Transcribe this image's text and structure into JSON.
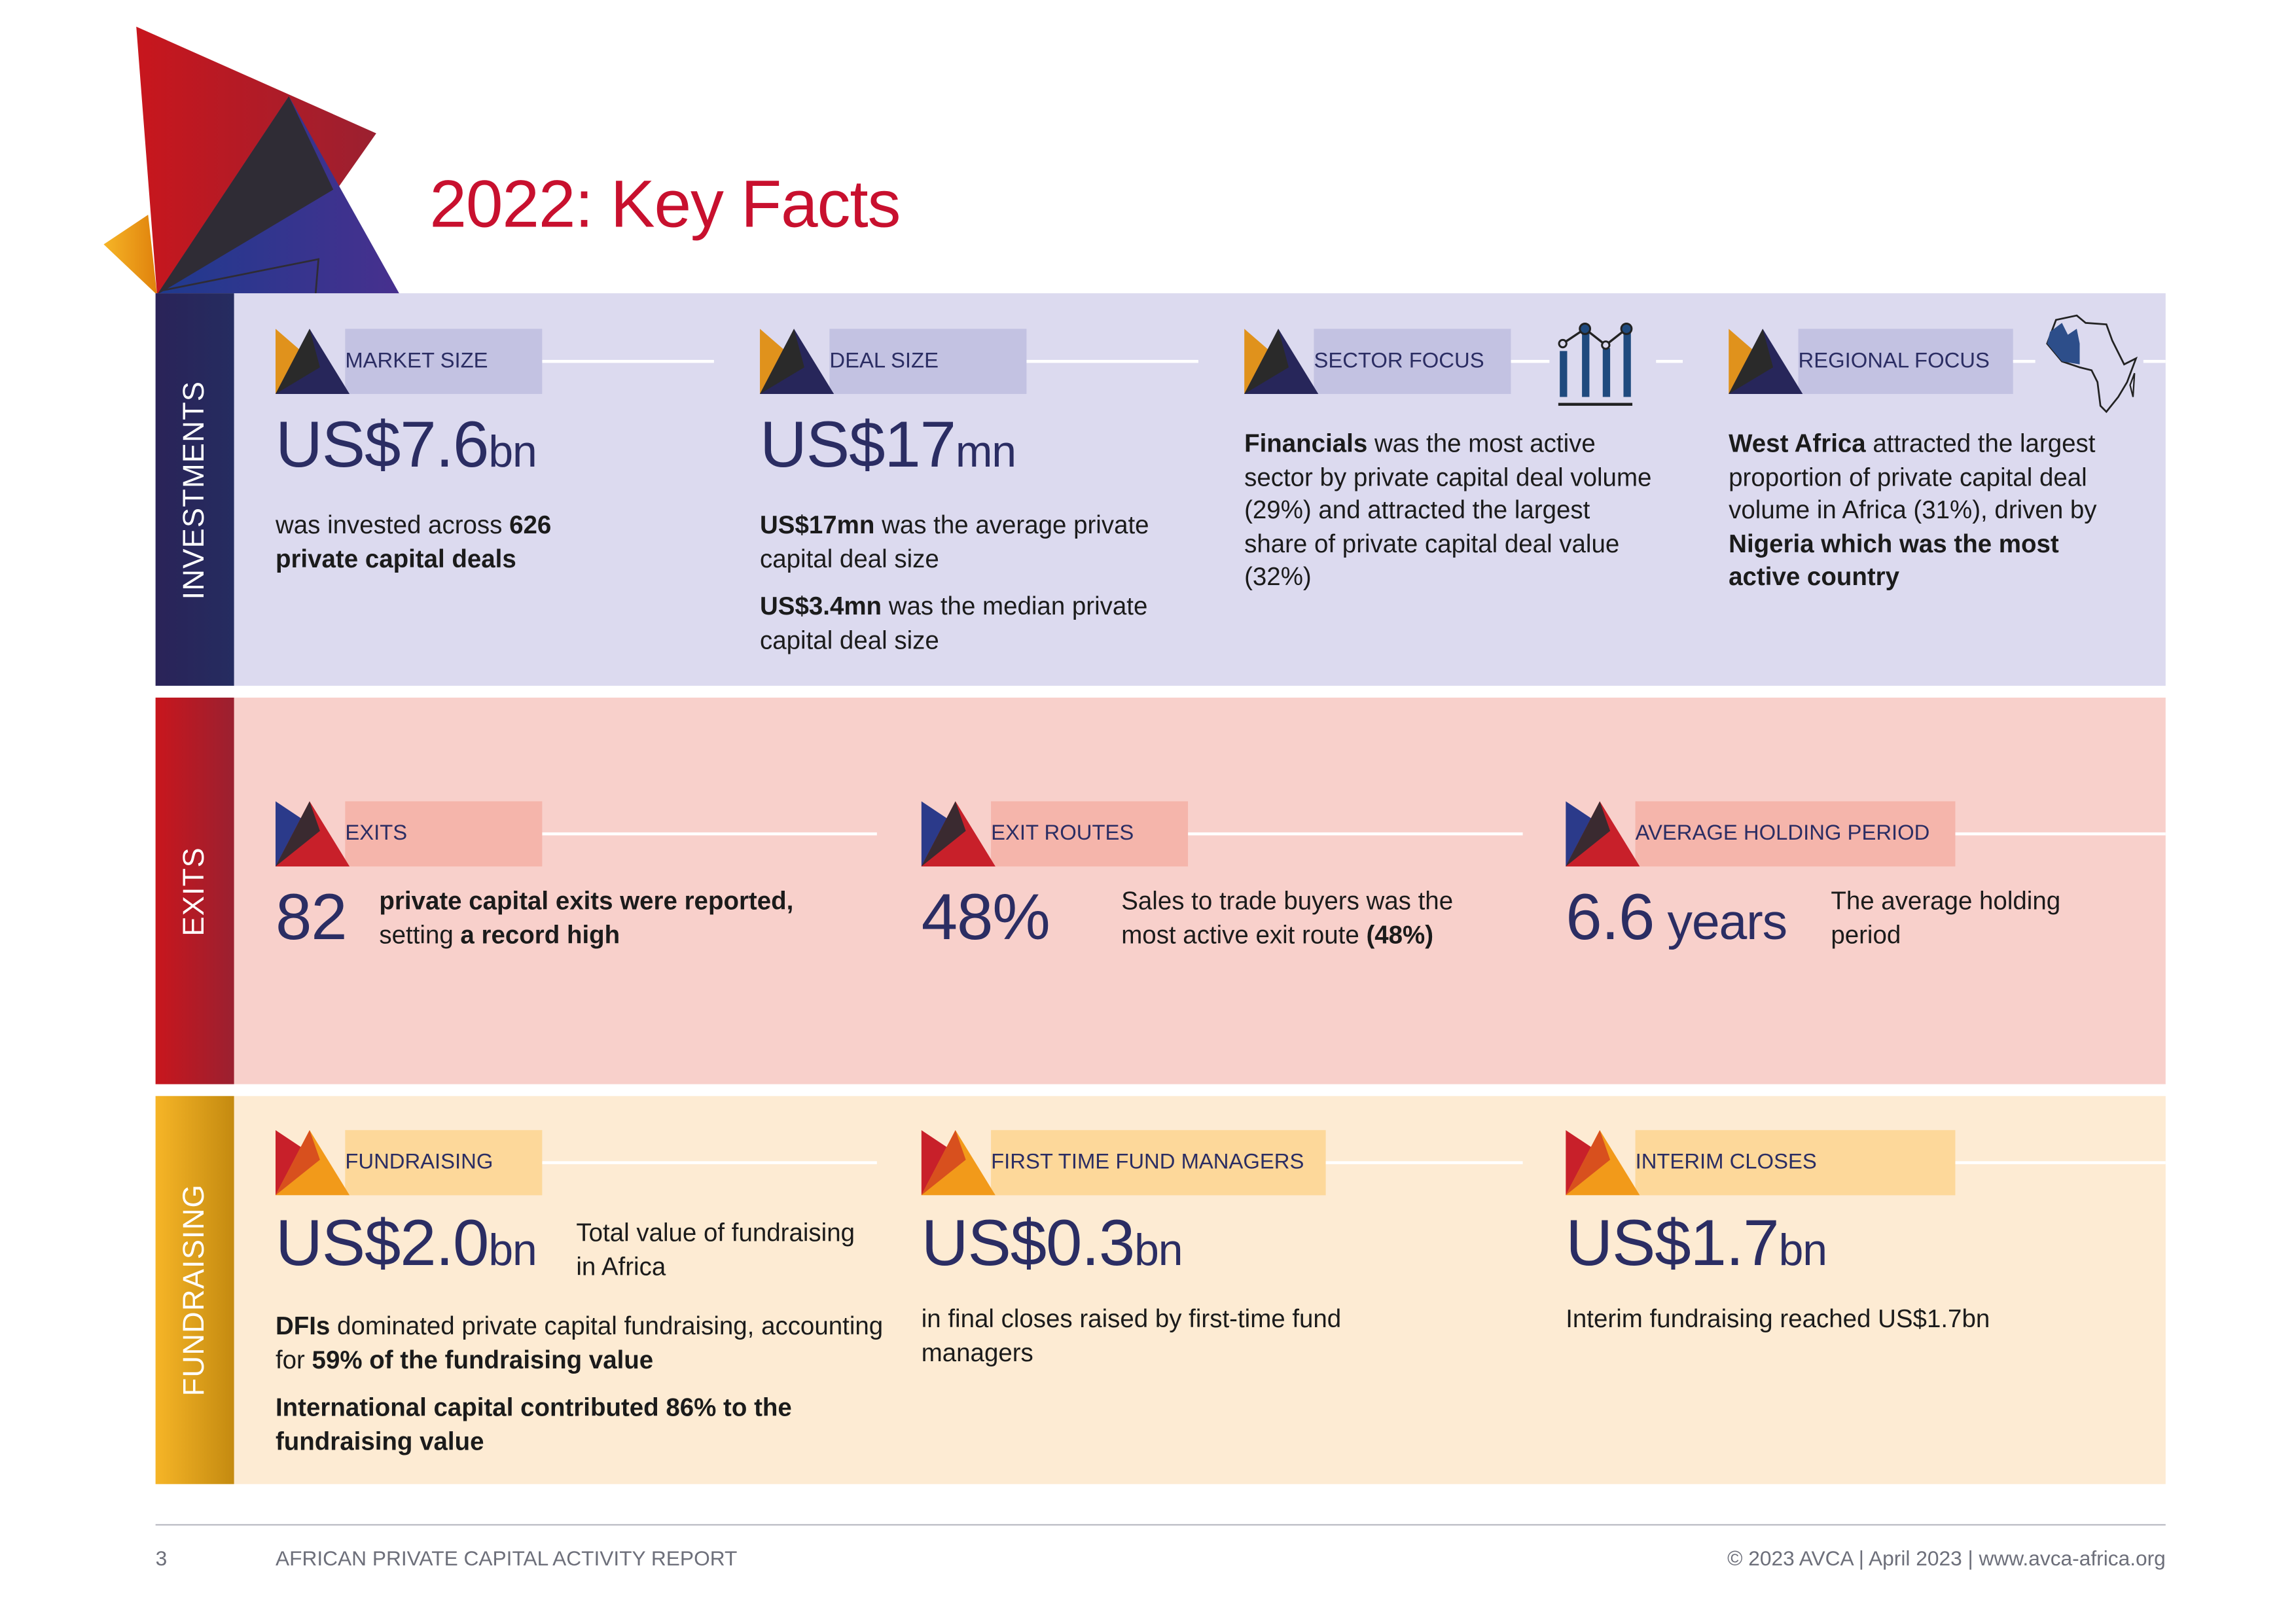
{
  "title": "2022: Key Facts",
  "colors": {
    "title": "#c8102e",
    "navy": "#2b2d63",
    "investments_bg": "#dcdaef",
    "exits_bg": "#f8d0cb",
    "fundraising_bg": "#fdebd3",
    "investments_side": "#2a2a5e",
    "exits_side": "#c0282d",
    "fundraising_side": "#f0b030"
  },
  "investments": {
    "label": "INVESTMENTS",
    "market_size": {
      "tag": "MARKET SIZE",
      "value": "US$7.6",
      "unit": "bn",
      "t1": "was invested across ",
      "b1": "626",
      "b2": "private capital deals"
    },
    "deal_size": {
      "tag": "DEAL SIZE",
      "value": "US$17",
      "unit": "mn",
      "b1": "US$17mn",
      "t1": " was the average private capital deal size",
      "b2": "US$3.4mn",
      "t2": " was the median private capital deal size"
    },
    "sector_focus": {
      "tag": "SECTOR FOCUS",
      "icon": "bar-chart-icon",
      "b1": "Financials",
      "t1": " was the most active sector by private capital deal volume (29%) and attracted the largest share of private capital deal value (32%)"
    },
    "regional_focus": {
      "tag": "REGIONAL FOCUS",
      "icon": "africa-map-icon",
      "b1": "West Africa",
      "t1": " attracted the largest proportion of private capital deal volume in Africa (31%), driven by ",
      "b2": "Nigeria which was the most active country"
    }
  },
  "exits": {
    "label": "EXITS",
    "exits": {
      "tag": "EXITS",
      "value": "82",
      "b1": "private capital exits were reported,",
      "t1": "setting ",
      "b2": "a record high"
    },
    "exit_routes": {
      "tag": "EXIT ROUTES",
      "value": "48%",
      "t1": "Sales to trade buyers was the most active exit route ",
      "b1": "(48%)"
    },
    "holding": {
      "tag": "AVERAGE HOLDING PERIOD",
      "value": "6.6",
      "unit": " years",
      "t1": "The average holding period"
    }
  },
  "fundraising": {
    "label": "FUNDRAISING",
    "fundraising": {
      "tag": "FUNDRAISING",
      "value": "US$2.0",
      "unit": "bn",
      "side": "Total value of fundraising in Africa",
      "b1": "DFIs",
      "t1": " dominated private capital fundraising, accounting for ",
      "b2": "59% of the fundraising value",
      "b3": "International capital contributed 86% to the fundraising value"
    },
    "first_time": {
      "tag": "FIRST TIME FUND MANAGERS",
      "value": "US$0.3",
      "unit": "bn",
      "t1": "in final closes raised by first-time fund managers"
    },
    "interim": {
      "tag": "INTERIM CLOSES",
      "value": "US$1.7",
      "unit": "bn",
      "t1": "Interim fundraising reached US$1.7bn"
    }
  },
  "footer": {
    "page": "3",
    "report": "AFRICAN PRIVATE CAPITAL ACTIVITY REPORT",
    "copyright": "© 2023 AVCA | April 2023 | www.avca-africa.org"
  }
}
